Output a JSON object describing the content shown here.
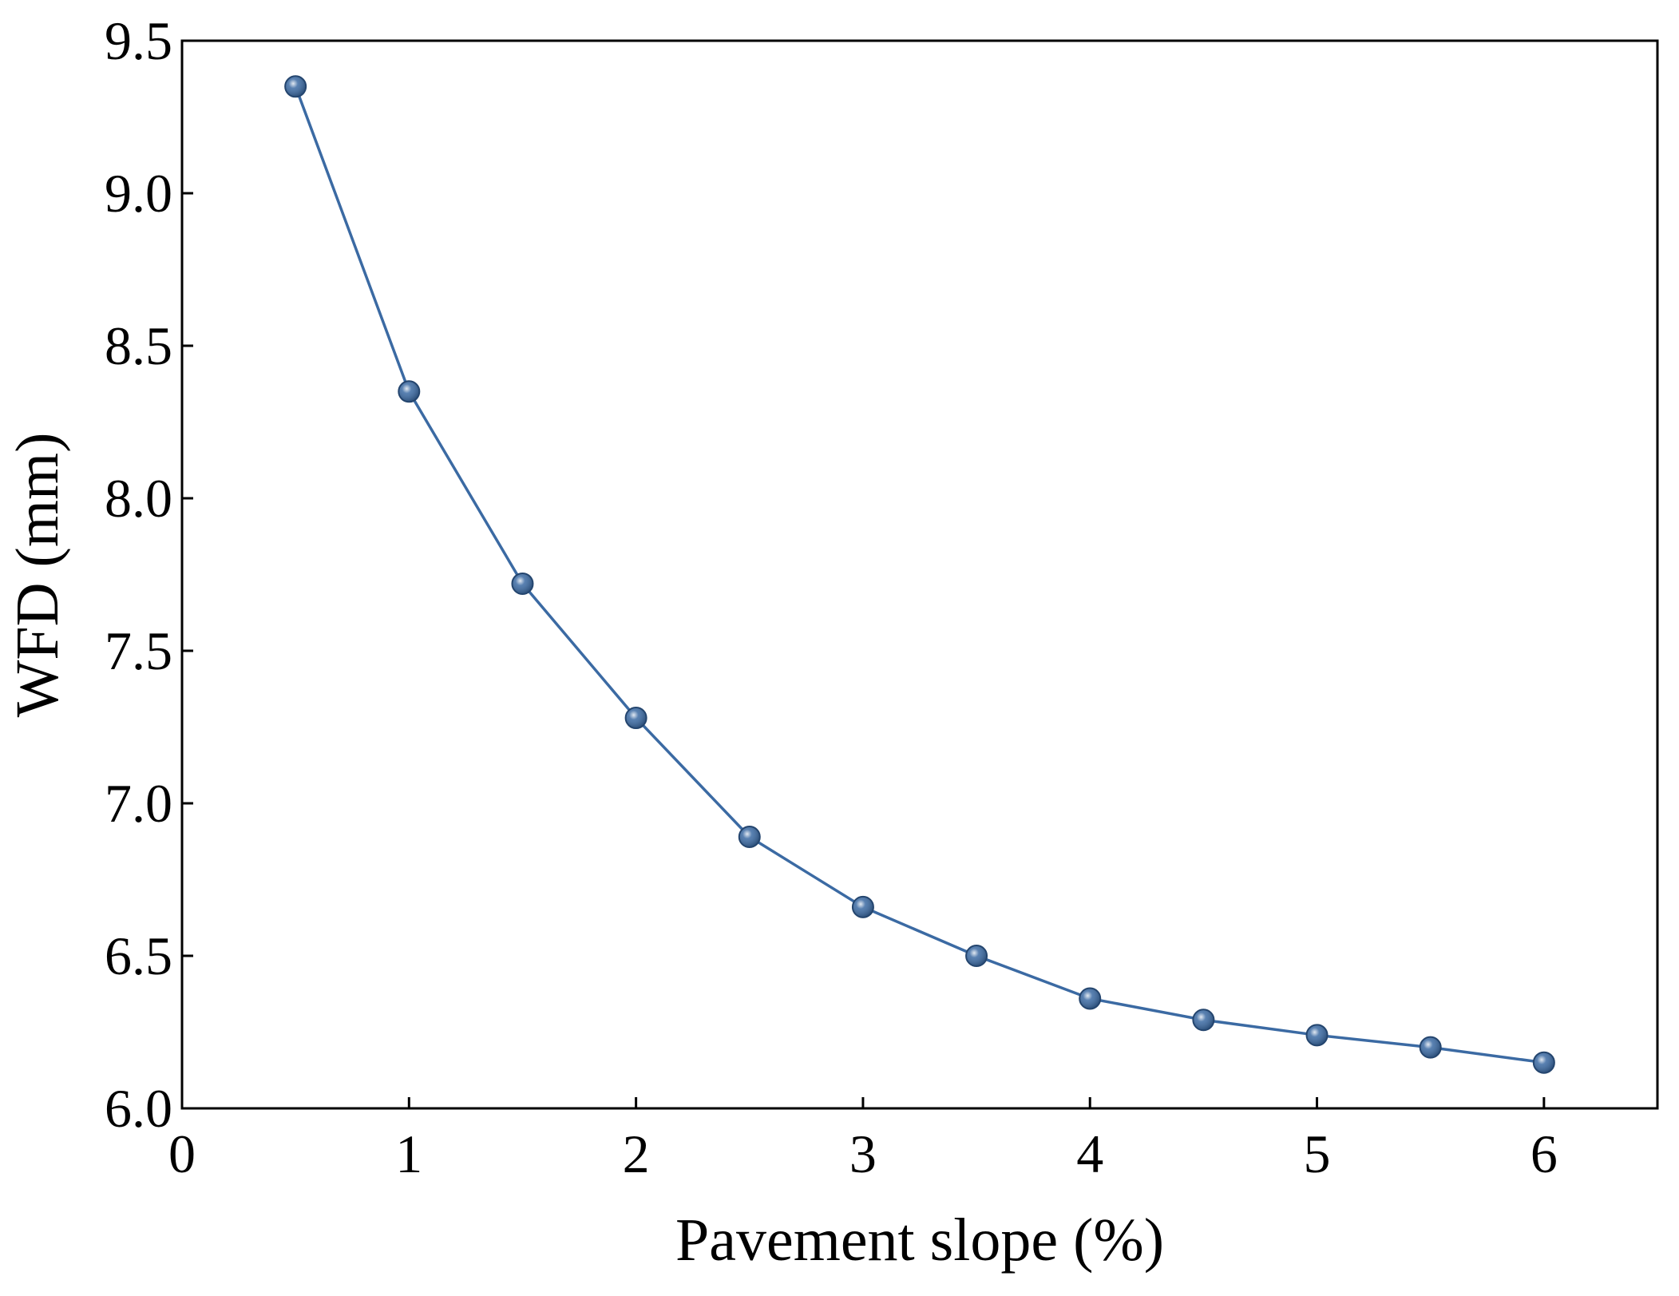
{
  "chart_data": {
    "type": "line",
    "x_label": "Pavement slope (%)",
    "y_label": "WFD (mm)",
    "xlim": [
      0,
      6.5
    ],
    "xticks": [
      0,
      1,
      2,
      3,
      4,
      5,
      6
    ],
    "ylim": [
      6,
      9.5
    ],
    "yticks": [
      {
        "value": 6,
        "label": "6.0"
      },
      6.5,
      {
        "value": 7,
        "label": "7.0"
      },
      7.5,
      {
        "value": 8,
        "label": "8.0"
      },
      8.5,
      {
        "value": 9,
        "label": "9.0"
      },
      9.5
    ],
    "x": [
      0.5,
      1,
      1.5,
      2,
      2.5,
      3,
      3.5,
      4,
      4.5,
      5,
      5.5,
      6
    ],
    "series": [
      {
        "color": "#3b6aa3",
        "values": [
          9.35,
          8.35,
          7.72,
          7.28,
          6.89,
          6.66,
          6.5,
          6.36,
          6.29,
          6.24,
          6.2,
          6.15
        ]
      }
    ]
  }
}
